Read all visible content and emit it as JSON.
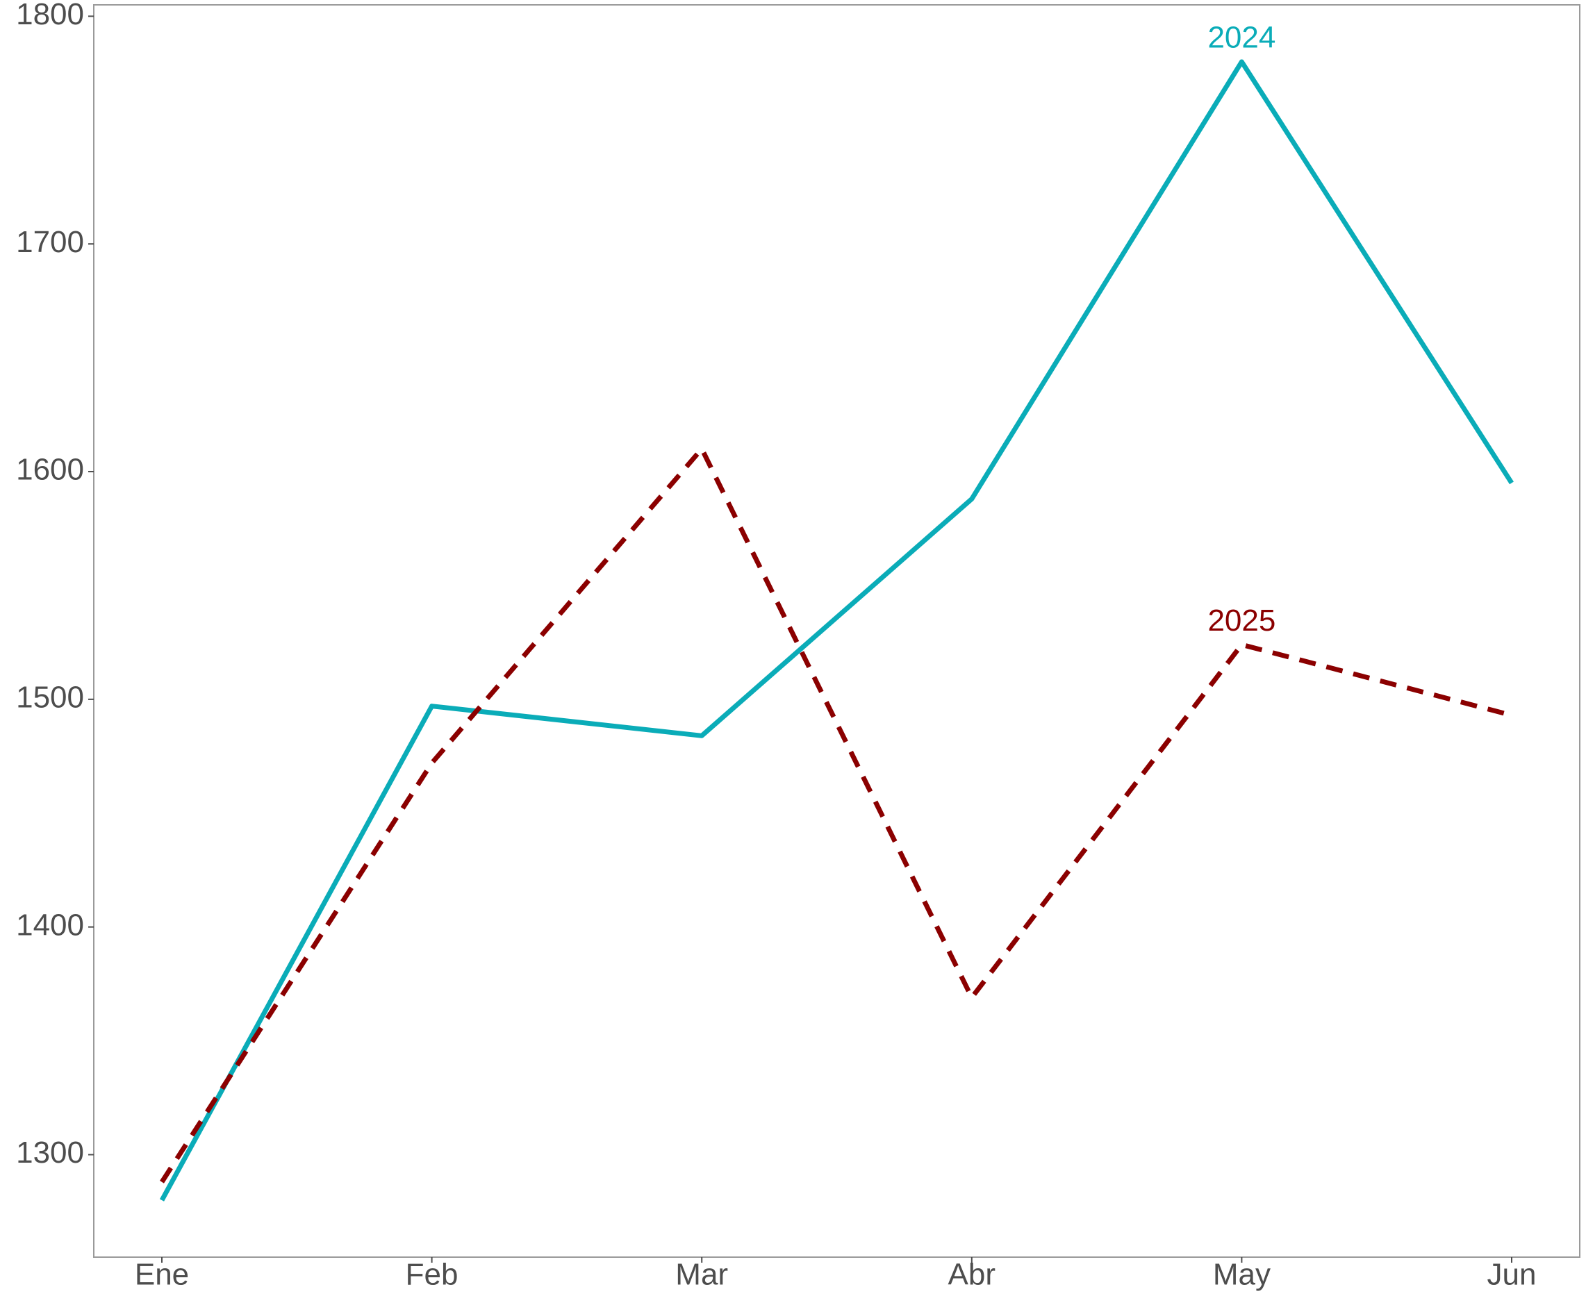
{
  "chart_data": {
    "type": "line",
    "categories": [
      "Ene",
      "Feb",
      "Mar",
      "Abr",
      "May",
      "Jun"
    ],
    "series": [
      {
        "name": "2024",
        "color": "#0aacb8",
        "dash": "solid",
        "values": [
          1280,
          1497,
          1484,
          1588,
          1780,
          1595
        ]
      },
      {
        "name": "2025",
        "color": "#8b0000",
        "dash": "dashed",
        "values": [
          1288,
          1472,
          1610,
          1369,
          1524,
          1493
        ]
      }
    ],
    "ylim": [
      1255,
      1805
    ],
    "yticks": [
      1300,
      1400,
      1500,
      1600,
      1700,
      1800
    ],
    "grid": false
  }
}
